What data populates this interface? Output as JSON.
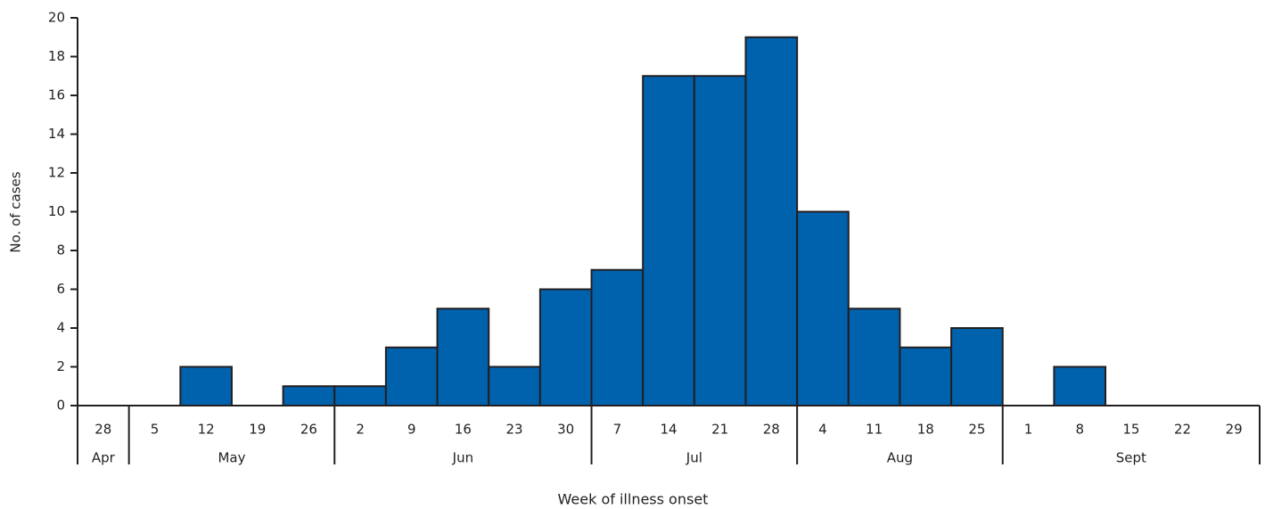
{
  "chart_data": {
    "type": "bar",
    "y_label": "No. of cases",
    "x_label": "Week of illness onset",
    "categories": [
      "28",
      "5",
      "12",
      "19",
      "26",
      "2",
      "9",
      "16",
      "23",
      "30",
      "7",
      "14",
      "21",
      "28",
      "4",
      "11",
      "18",
      "25",
      "1",
      "8",
      "15",
      "22",
      "29"
    ],
    "months": [
      "Apr",
      "May",
      "Jun",
      "Jul",
      "Aug",
      "Sept"
    ],
    "values": [
      0,
      0,
      2,
      0,
      1,
      1,
      3,
      5,
      2,
      6,
      7,
      17,
      17,
      19,
      10,
      5,
      3,
      4,
      0,
      2,
      0,
      0,
      0
    ],
    "color": "#0061ad",
    "ylim": [
      0,
      20
    ],
    "yticks": [
      0,
      2,
      4,
      6,
      8,
      10,
      12,
      14,
      16,
      18,
      20
    ]
  }
}
